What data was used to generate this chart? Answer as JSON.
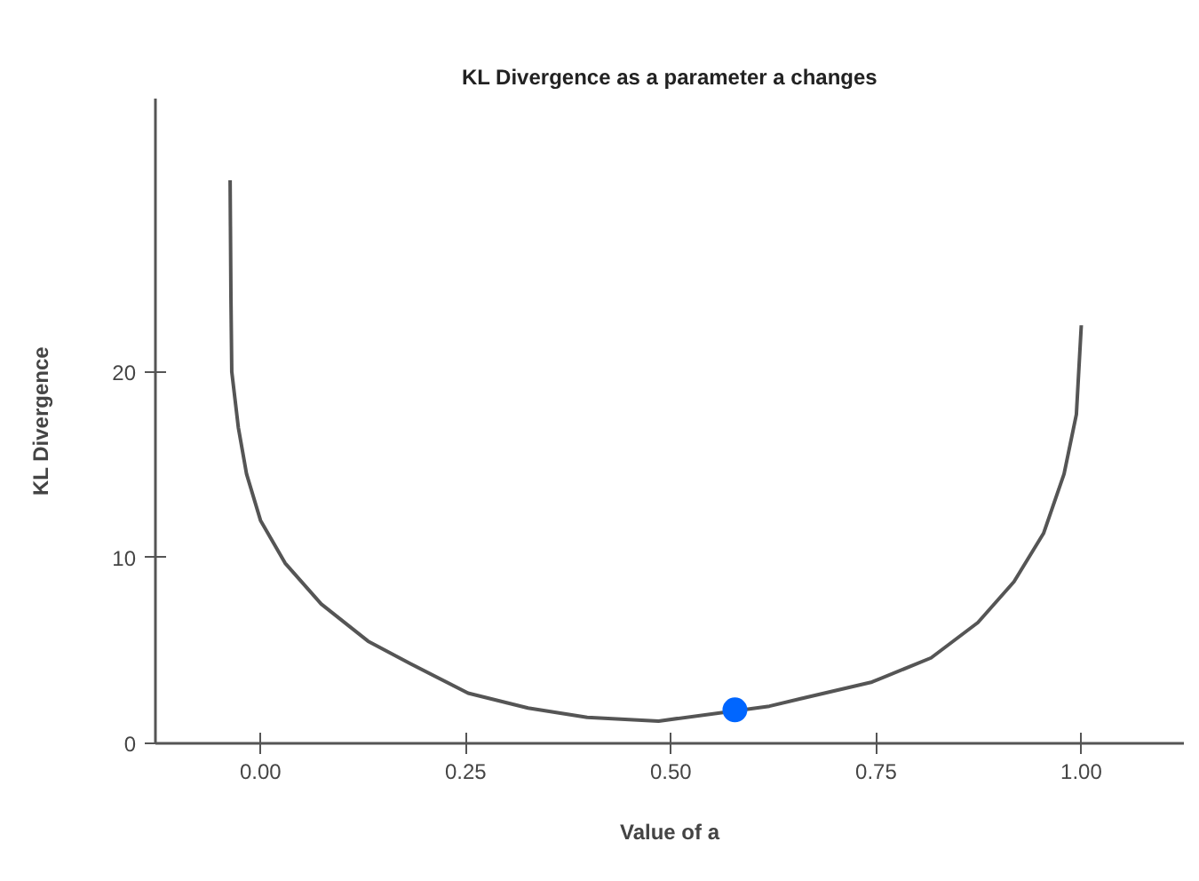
{
  "chart_data": {
    "type": "line",
    "title": "KL Divergence as a parameter a changes",
    "xlabel": "Value of a",
    "ylabel": "KL Divergence",
    "xlim": [
      -0.128,
      1.125
    ],
    "ylim": [
      0,
      34.7
    ],
    "xticks": [
      {
        "value": 0,
        "label": "0.00"
      },
      {
        "value": 0.25,
        "label": "0.25"
      },
      {
        "value": 0.5,
        "label": "0.50"
      },
      {
        "value": 0.75,
        "label": "0.75"
      },
      {
        "value": 1,
        "label": "1.00"
      }
    ],
    "yticks": [
      0,
      10,
      20
    ],
    "grid": false,
    "series": [
      {
        "color": "#555555",
        "marker": "none",
        "line_style": "solid",
        "x": [
          -0.037,
          -0.036,
          -0.035,
          -0.027,
          -0.017,
          0.0,
          0.03,
          0.074,
          0.131,
          0.182,
          0.253,
          0.326,
          0.398,
          0.485,
          0.62,
          0.658,
          0.745,
          0.817,
          0.874,
          0.918,
          0.954,
          0.979,
          0.994,
          1.0
        ],
        "values": [
          30.3,
          24,
          20.0,
          17.0,
          14.5,
          12.0,
          9.7,
          7.5,
          5.5,
          4.3,
          2.7,
          1.9,
          1.4,
          1.2,
          2.0,
          2.4,
          3.3,
          4.6,
          6.5,
          8.7,
          11.3,
          14.5,
          17.7,
          22.5
        ]
      },
      {
        "type": "scatter",
        "color": "#0066ff",
        "marker": "circle",
        "x": [
          0.578
        ],
        "values": [
          1.8
        ]
      }
    ]
  }
}
